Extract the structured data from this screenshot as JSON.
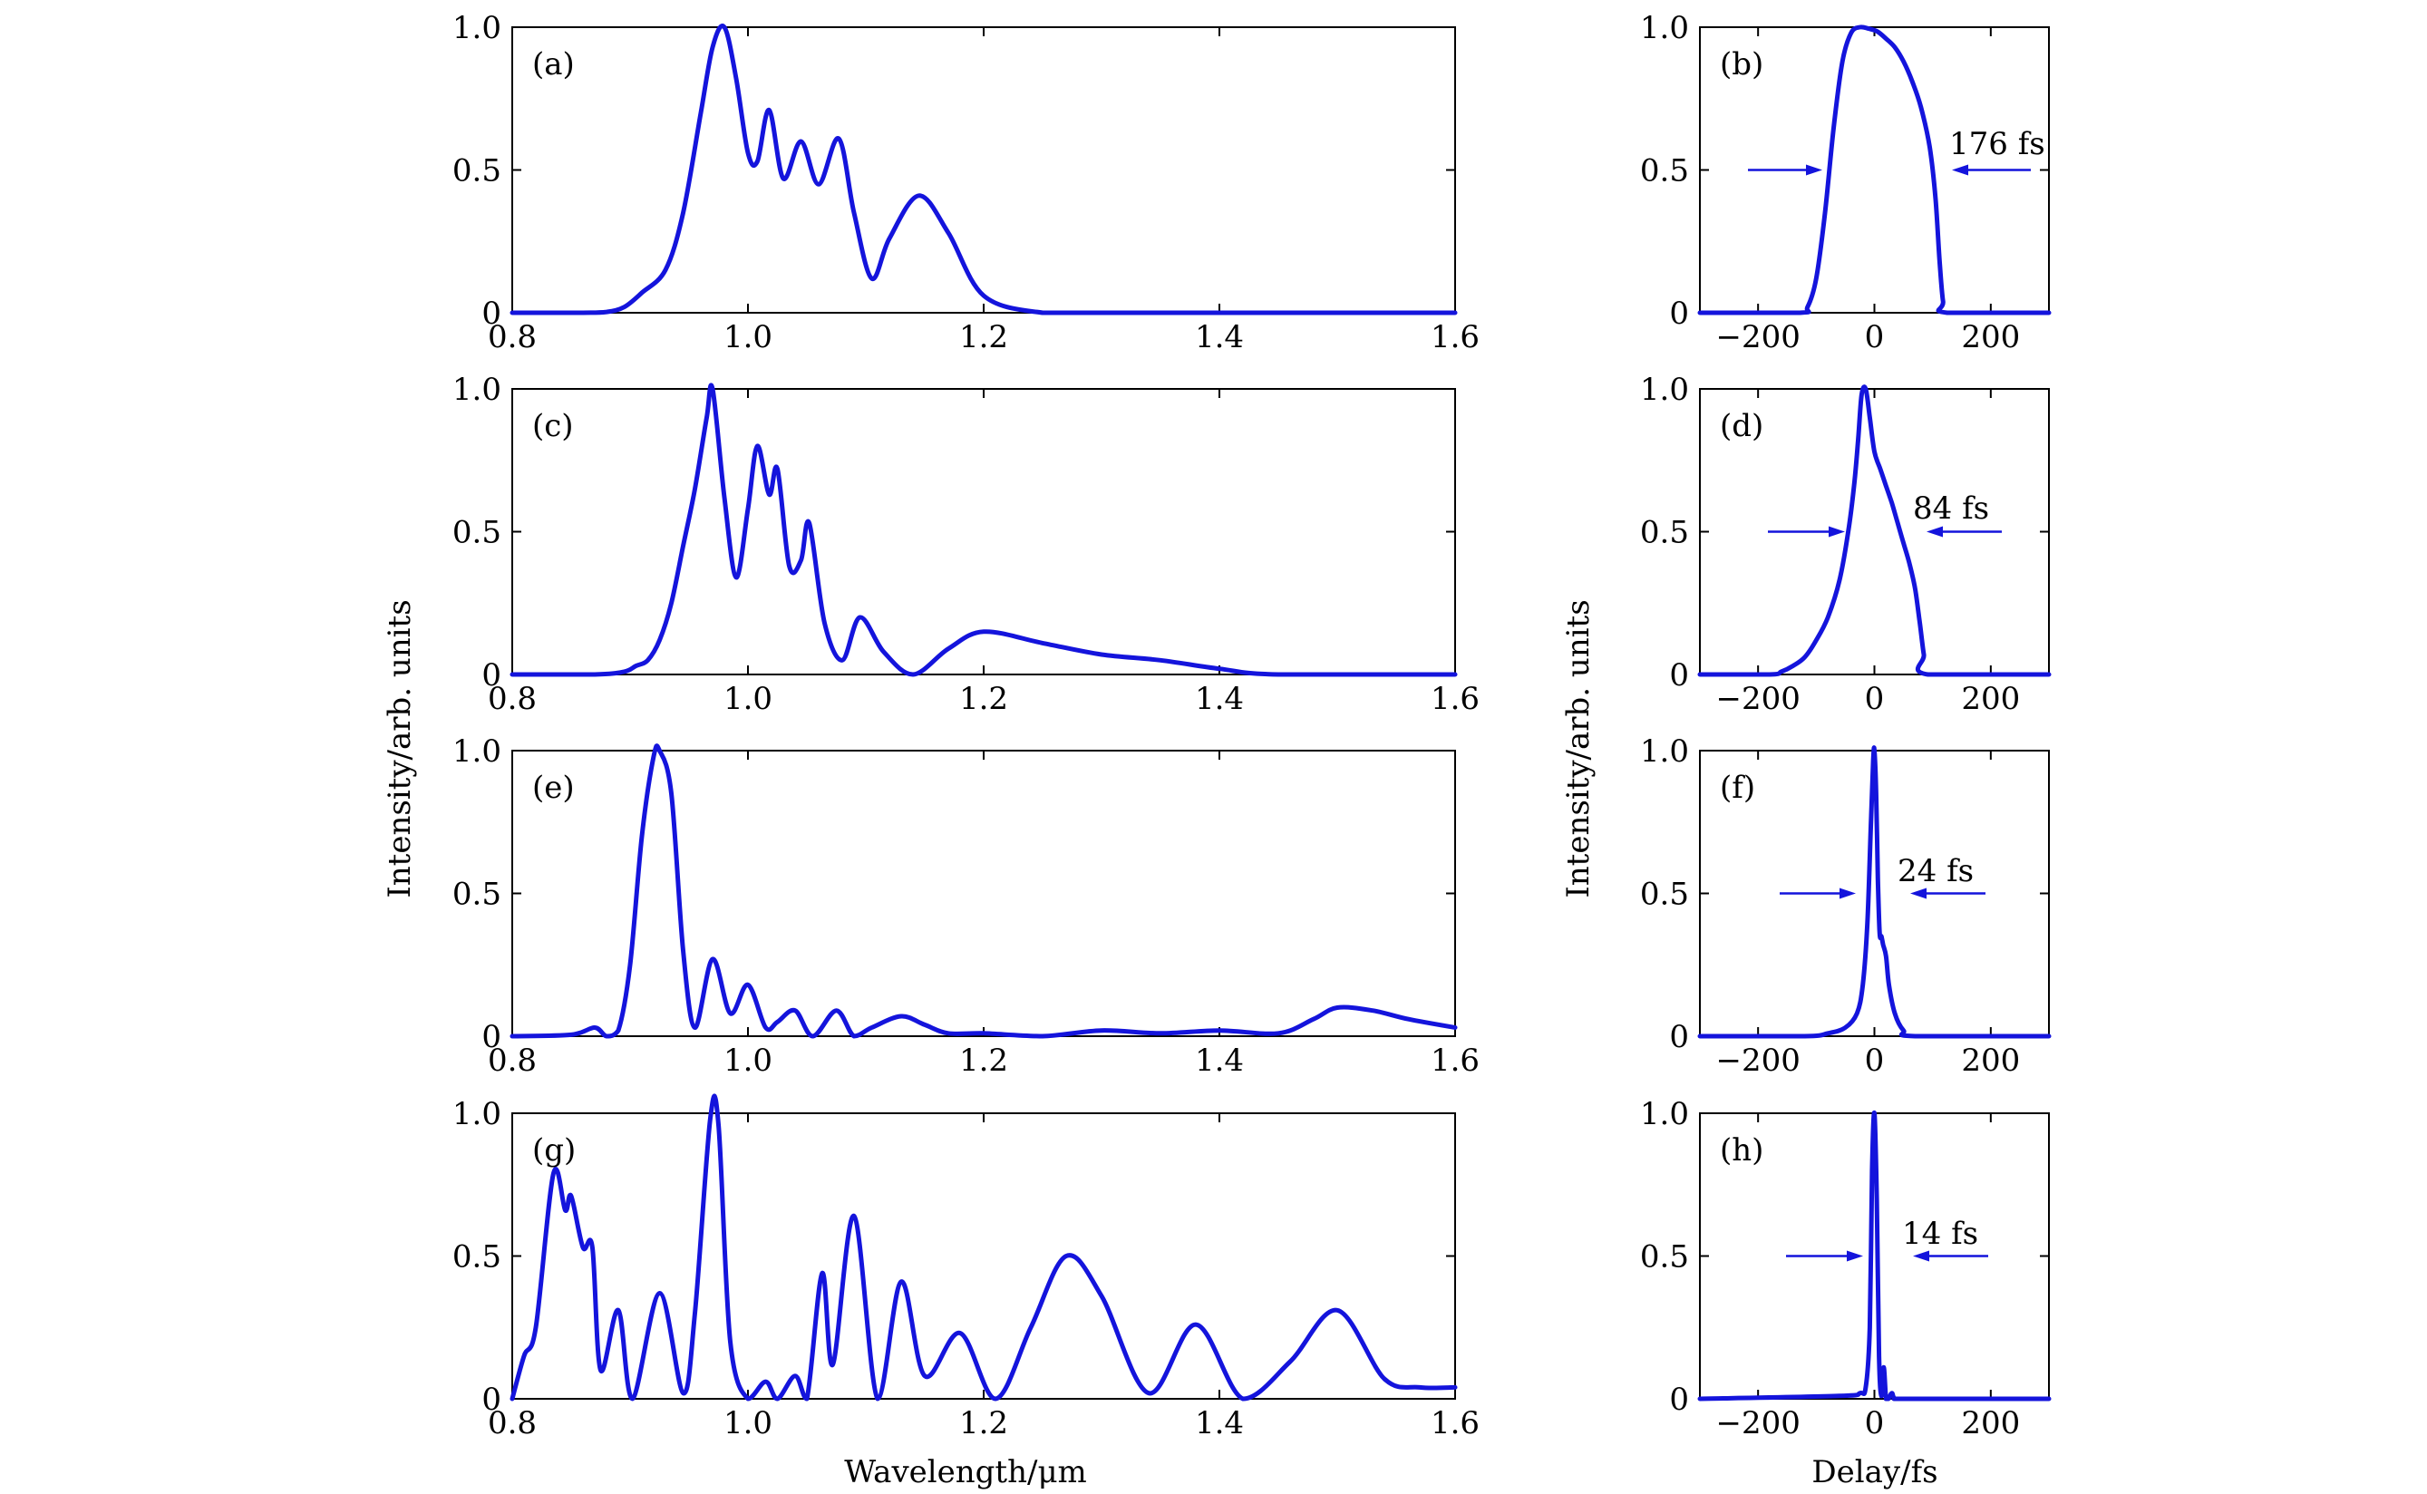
{
  "figure": {
    "ylabel_left": "Intensity/arb. units",
    "ylabel_right": "Intensity/arb. units",
    "xlabel_left": "Wavelength/μm",
    "xlabel_right": "Delay/fs",
    "line_color": "#1414dc"
  },
  "chart_data": [
    {
      "type": "line",
      "panel": "(a)",
      "xlim": [
        0.8,
        1.6
      ],
      "ylim": [
        0,
        1.0
      ],
      "xticks": [
        "0.8",
        "1.0",
        "1.2",
        "1.4",
        "1.6"
      ],
      "yticks": [
        "0",
        "0.5",
        "1.0"
      ],
      "x": [
        0.8,
        0.86,
        0.88,
        0.895,
        0.91,
        0.93,
        0.945,
        0.96,
        0.97,
        0.98,
        0.99,
        1.0,
        1.008,
        1.018,
        1.03,
        1.045,
        1.06,
        1.077,
        1.09,
        1.105,
        1.12,
        1.145,
        1.17,
        1.2,
        1.25,
        1.3,
        1.6
      ],
      "y": [
        0.0,
        0.0,
        0.003,
        0.02,
        0.07,
        0.15,
        0.35,
        0.7,
        0.93,
        1.0,
        0.82,
        0.56,
        0.53,
        0.71,
        0.47,
        0.6,
        0.45,
        0.61,
        0.35,
        0.12,
        0.26,
        0.41,
        0.28,
        0.06,
        0.0,
        0.0,
        0.0
      ]
    },
    {
      "type": "line",
      "panel": "(b)",
      "xlim": [
        -300,
        300
      ],
      "ylim": [
        0,
        1.0
      ],
      "xticks": [
        "−200",
        "0",
        "200"
      ],
      "yticks": [
        "0",
        "0.5",
        "1.0"
      ],
      "x": [
        -300,
        -130,
        -115,
        -100,
        -85,
        -70,
        -55,
        -40,
        -25,
        -10,
        5,
        20,
        35,
        50,
        65,
        80,
        95,
        105,
        112,
        118,
        125,
        300
      ],
      "y": [
        0.0,
        0.0,
        0.02,
        0.12,
        0.35,
        0.65,
        0.88,
        0.98,
        1.0,
        0.995,
        0.985,
        0.96,
        0.93,
        0.88,
        0.81,
        0.72,
        0.58,
        0.4,
        0.18,
        0.04,
        0.0,
        0.0
      ],
      "annotation": "176 fs"
    },
    {
      "type": "line",
      "panel": "(c)",
      "xlim": [
        0.8,
        1.6
      ],
      "ylim": [
        0,
        1.0
      ],
      "xticks": [
        "0.8",
        "1.0",
        "1.2",
        "1.4",
        "1.6"
      ],
      "yticks": [
        "0",
        "0.5",
        "1.0"
      ],
      "x": [
        0.8,
        0.87,
        0.895,
        0.905,
        0.915,
        0.925,
        0.935,
        0.945,
        0.955,
        0.965,
        0.97,
        0.98,
        0.99,
        1.0,
        1.008,
        1.018,
        1.025,
        1.035,
        1.045,
        1.052,
        1.065,
        1.08,
        1.095,
        1.115,
        1.14,
        1.17,
        1.2,
        1.25,
        1.3,
        1.35,
        1.4,
        1.45,
        1.6
      ],
      "y": [
        0.0,
        0.0,
        0.01,
        0.03,
        0.05,
        0.12,
        0.25,
        0.45,
        0.65,
        0.9,
        1.0,
        0.62,
        0.34,
        0.58,
        0.8,
        0.63,
        0.72,
        0.38,
        0.4,
        0.53,
        0.18,
        0.05,
        0.2,
        0.08,
        0.0,
        0.09,
        0.15,
        0.11,
        0.07,
        0.05,
        0.02,
        0.0,
        0.0
      ]
    },
    {
      "type": "line",
      "panel": "(d)",
      "xlim": [
        -300,
        300
      ],
      "ylim": [
        0,
        1.0
      ],
      "xticks": [
        "−200",
        "0",
        "200"
      ],
      "yticks": [
        "0",
        "0.5",
        "1.0"
      ],
      "x": [
        -300,
        -180,
        -160,
        -140,
        -120,
        -100,
        -80,
        -60,
        -45,
        -35,
        -28,
        -22,
        -15,
        -8,
        0,
        10,
        20,
        30,
        40,
        50,
        60,
        70,
        78,
        85,
        92,
        300
      ],
      "y": [
        0.0,
        0.0,
        0.01,
        0.03,
        0.06,
        0.12,
        0.2,
        0.33,
        0.5,
        0.66,
        0.82,
        0.98,
        1.0,
        0.9,
        0.78,
        0.72,
        0.66,
        0.6,
        0.53,
        0.46,
        0.39,
        0.3,
        0.18,
        0.07,
        0.0,
        0.0
      ],
      "annotation": "84 fs"
    },
    {
      "type": "line",
      "panel": "(e)",
      "xlim": [
        0.8,
        1.6
      ],
      "ylim": [
        0,
        1.0
      ],
      "xticks": [
        "0.8",
        "1.0",
        "1.2",
        "1.4",
        "1.6"
      ],
      "yticks": [
        "0",
        "0.5",
        "1.0"
      ],
      "x": [
        0.8,
        0.85,
        0.87,
        0.88,
        0.89,
        0.9,
        0.91,
        0.92,
        0.925,
        0.935,
        0.945,
        0.955,
        0.97,
        0.985,
        1.0,
        1.015,
        1.025,
        1.04,
        1.055,
        1.075,
        1.09,
        1.105,
        1.13,
        1.15,
        1.17,
        1.2,
        1.25,
        1.3,
        1.35,
        1.4,
        1.45,
        1.48,
        1.5,
        1.53,
        1.56,
        1.6
      ],
      "y": [
        0.0,
        0.005,
        0.03,
        0.0,
        0.02,
        0.25,
        0.7,
        0.98,
        1.0,
        0.85,
        0.3,
        0.03,
        0.27,
        0.08,
        0.18,
        0.03,
        0.05,
        0.09,
        0.0,
        0.09,
        0.0,
        0.03,
        0.07,
        0.04,
        0.01,
        0.01,
        0.0,
        0.02,
        0.01,
        0.02,
        0.01,
        0.06,
        0.1,
        0.09,
        0.06,
        0.03
      ]
    },
    {
      "type": "line",
      "panel": "(f)",
      "xlim": [
        -300,
        300
      ],
      "ylim": [
        0,
        1.0
      ],
      "xticks": [
        "−200",
        "0",
        "200"
      ],
      "yticks": [
        "0",
        "0.5",
        "1.0"
      ],
      "x": [
        -300,
        -120,
        -80,
        -50,
        -30,
        -20,
        -12,
        -6,
        -2,
        0,
        3,
        6,
        9,
        12,
        15,
        20,
        25,
        35,
        50,
        70,
        300
      ],
      "y": [
        0.0,
        0.0,
        0.01,
        0.03,
        0.08,
        0.18,
        0.4,
        0.75,
        0.97,
        1.0,
        0.85,
        0.55,
        0.36,
        0.35,
        0.32,
        0.28,
        0.18,
        0.08,
        0.02,
        0.0,
        0.0
      ],
      "annotation": "24 fs"
    },
    {
      "type": "line",
      "panel": "(g)",
      "xlim": [
        0.8,
        1.6
      ],
      "ylim": [
        0,
        1.0
      ],
      "xticks": [
        "0.8",
        "1.0",
        "1.2",
        "1.4",
        "1.6"
      ],
      "yticks": [
        "0",
        "0.5",
        "1.0"
      ],
      "x": [
        0.8,
        0.81,
        0.82,
        0.835,
        0.845,
        0.85,
        0.86,
        0.868,
        0.875,
        0.89,
        0.902,
        0.925,
        0.945,
        0.955,
        0.968,
        0.975,
        0.985,
        1.0,
        1.015,
        1.025,
        1.04,
        1.05,
        1.063,
        1.072,
        1.09,
        1.11,
        1.13,
        1.15,
        1.18,
        1.21,
        1.24,
        1.27,
        1.3,
        1.34,
        1.38,
        1.42,
        1.46,
        1.5,
        1.54,
        1.57,
        1.6
      ],
      "y": [
        0.0,
        0.15,
        0.25,
        0.79,
        0.66,
        0.71,
        0.53,
        0.53,
        0.1,
        0.31,
        0.0,
        0.37,
        0.02,
        0.3,
        0.98,
        0.96,
        0.2,
        0.0,
        0.06,
        0.0,
        0.08,
        0.0,
        0.44,
        0.12,
        0.64,
        0.0,
        0.41,
        0.08,
        0.23,
        0.0,
        0.25,
        0.5,
        0.36,
        0.02,
        0.26,
        0.0,
        0.13,
        0.31,
        0.07,
        0.04,
        0.04
      ]
    },
    {
      "type": "line",
      "panel": "(h)",
      "xlim": [
        -300,
        300
      ],
      "ylim": [
        0,
        1.0
      ],
      "xticks": [
        "−200",
        "0",
        "200"
      ],
      "yticks": [
        "0",
        "0.5",
        "1.0"
      ],
      "x": [
        -300,
        -60,
        -25,
        -15,
        -8,
        -4,
        0,
        4,
        8,
        12,
        16,
        20,
        24,
        30,
        36,
        60,
        300
      ],
      "y": [
        0.0,
        0.01,
        0.02,
        0.04,
        0.25,
        0.8,
        1.0,
        0.7,
        0.15,
        0.01,
        0.11,
        0.0,
        0.0,
        0.02,
        0.0,
        0.0,
        0.0
      ],
      "annotation": "14 fs"
    }
  ]
}
